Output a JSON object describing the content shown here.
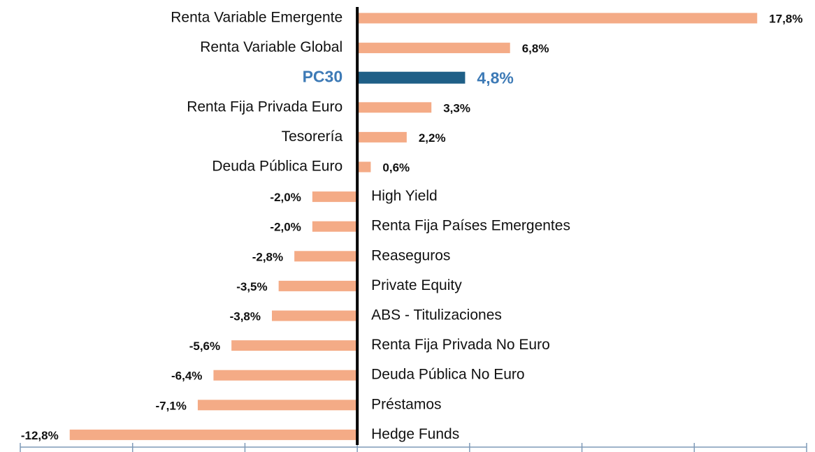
{
  "chart_data": {
    "type": "bar",
    "orientation": "horizontal",
    "categories": [
      "Renta Variable Emergente",
      "Renta Variable Global",
      "PC30",
      "Renta Fija Privada Euro",
      "Tesorería",
      "Deuda Pública Euro",
      "High Yield",
      "Renta Fija Países Emergentes",
      "Reaseguros",
      "Private Equity",
      "ABS - Titulizaciones",
      "Renta Fija Privada No Euro",
      "Deuda Pública No Euro",
      "Préstamos",
      "Hedge Funds"
    ],
    "values": [
      17.8,
      6.8,
      4.8,
      3.3,
      2.2,
      0.6,
      -2.0,
      -2.0,
      -2.8,
      -3.5,
      -3.8,
      -5.6,
      -6.4,
      -7.1,
      -12.8
    ],
    "value_labels": [
      "17,8%",
      "6,8%",
      "4,8%",
      "3,3%",
      "2,2%",
      "0,6%",
      "-2,0%",
      "-2,0%",
      "-2,8%",
      "-3,5%",
      "-3,8%",
      "-5,6%",
      "-6,4%",
      "-7,1%",
      "-12,8%"
    ],
    "color": "#f4ab86",
    "highlight": {
      "index": 2,
      "bar_color": "#1f5f87",
      "label_color": "#3d7ab6"
    },
    "xlim": [
      -15,
      20
    ],
    "xticks": [
      -15,
      -10,
      -5,
      0,
      5,
      10,
      15,
      20
    ]
  }
}
